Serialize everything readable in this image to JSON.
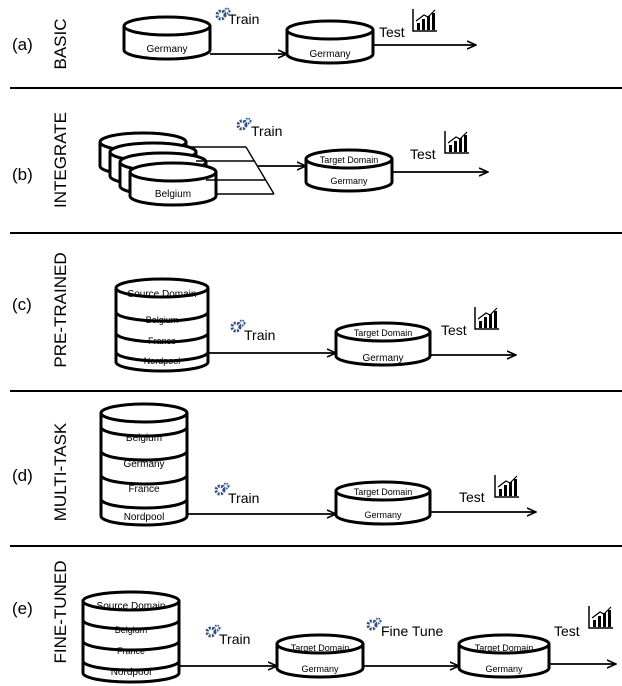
{
  "panels": [
    {
      "id": "a",
      "letter": "(a)",
      "side_label": "BASIC",
      "train_label": "Train",
      "test_label": "Test",
      "source": {
        "lines": [
          "Germany"
        ]
      },
      "target": {
        "lines": [
          "Germany"
        ]
      }
    },
    {
      "id": "b",
      "letter": "(b)",
      "side_label": "INTEGRATE",
      "train_label": "Train",
      "test_label": "Test",
      "source": {
        "lines": [
          "Belgium"
        ]
      },
      "target": {
        "lines": [
          "Target Domain",
          "Germany"
        ]
      }
    },
    {
      "id": "c",
      "letter": "(c)",
      "side_label": "PRE-TRAINED",
      "train_label": "Train",
      "test_label": "Test",
      "source": {
        "lines": [
          "Source Domain",
          "Belgium",
          "France",
          "Nordpool"
        ]
      },
      "target": {
        "lines": [
          "Target Domain",
          "Germany"
        ]
      }
    },
    {
      "id": "d",
      "letter": "(d)",
      "side_label": "MULTI-TASK",
      "train_label": "Train",
      "test_label": "Test",
      "source": {
        "lines": [
          "Belgium",
          "Germany",
          "France",
          "Nordpool"
        ]
      },
      "target": {
        "lines": [
          "Target Domain",
          "Germany"
        ]
      }
    },
    {
      "id": "e",
      "letter": "(e)",
      "side_label": "FINE-TUNED",
      "train_label": "Train",
      "finetune_label": "Fine Tune",
      "test_label": "Test",
      "source": {
        "lines": [
          "Source Domain",
          "Belgium",
          "France",
          "Nordpool"
        ]
      },
      "target": {
        "lines": [
          "Target Domain",
          "Germany"
        ]
      },
      "target2": {
        "lines": [
          "Target Domain",
          "Germany"
        ]
      }
    }
  ],
  "icons": {
    "train": "gears-icon",
    "test": "chart-growth-icon"
  }
}
